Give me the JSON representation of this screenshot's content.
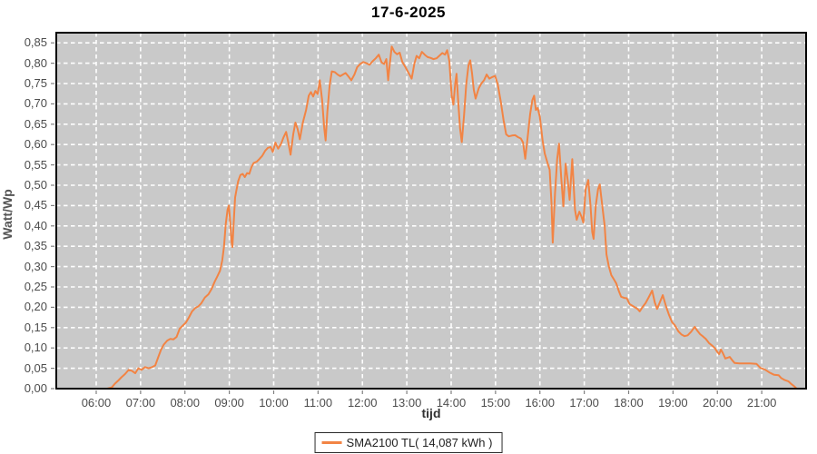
{
  "chart_data": {
    "type": "line",
    "title": "17-6-2025",
    "xlabel": "tijd",
    "ylabel": "Watt/Wp",
    "xlim": [
      5.1,
      22.0
    ],
    "ylim": [
      0,
      0.875
    ],
    "grid": "white dashed gridlines on gray plot background",
    "legend_position": "bottom-center",
    "colors": {
      "plot_bg": "#c9c9c9",
      "grid": "#ffffff",
      "plot_border": "#000000",
      "tick": "#808080",
      "series": "#f28444"
    },
    "x_ticks": [
      {
        "v": 6,
        "label": "06:00"
      },
      {
        "v": 7,
        "label": "07:00"
      },
      {
        "v": 8,
        "label": "08:00"
      },
      {
        "v": 9,
        "label": "09:00"
      },
      {
        "v": 10,
        "label": "10:00"
      },
      {
        "v": 11,
        "label": "11:00"
      },
      {
        "v": 12,
        "label": "12:00"
      },
      {
        "v": 13,
        "label": "13:00"
      },
      {
        "v": 14,
        "label": "14:00"
      },
      {
        "v": 15,
        "label": "15:00"
      },
      {
        "v": 16,
        "label": "16:00"
      },
      {
        "v": 17,
        "label": "17:00"
      },
      {
        "v": 18,
        "label": "18:00"
      },
      {
        "v": 19,
        "label": "19:00"
      },
      {
        "v": 20,
        "label": "20:00"
      },
      {
        "v": 21,
        "label": "21:00"
      }
    ],
    "y_ticks": [
      {
        "v": 0.0,
        "label": "0,00"
      },
      {
        "v": 0.05,
        "label": "0,05"
      },
      {
        "v": 0.1,
        "label": "0,10"
      },
      {
        "v": 0.15,
        "label": "0,15"
      },
      {
        "v": 0.2,
        "label": "0,20"
      },
      {
        "v": 0.25,
        "label": "0,25"
      },
      {
        "v": 0.3,
        "label": "0,30"
      },
      {
        "v": 0.35,
        "label": "0,35"
      },
      {
        "v": 0.4,
        "label": "0,40"
      },
      {
        "v": 0.45,
        "label": "0,45"
      },
      {
        "v": 0.5,
        "label": "0,50"
      },
      {
        "v": 0.55,
        "label": "0,55"
      },
      {
        "v": 0.6,
        "label": "0,60"
      },
      {
        "v": 0.65,
        "label": "0,65"
      },
      {
        "v": 0.7,
        "label": "0,70"
      },
      {
        "v": 0.75,
        "label": "0,75"
      },
      {
        "v": 0.8,
        "label": "0,80"
      },
      {
        "v": 0.85,
        "label": "0,85"
      }
    ],
    "series": [
      {
        "name": "SMA2100 TL( 14,087 kWh )",
        "color": "#f28444",
        "points": [
          [
            5.38,
            0
          ],
          [
            5.55,
            0
          ],
          [
            5.75,
            0
          ],
          [
            5.95,
            0
          ],
          [
            6.1,
            0
          ],
          [
            6.25,
            0
          ],
          [
            6.35,
            0.003
          ],
          [
            6.42,
            0.012
          ],
          [
            6.5,
            0.02
          ],
          [
            6.57,
            0.028
          ],
          [
            6.65,
            0.036
          ],
          [
            6.73,
            0.046
          ],
          [
            6.8,
            0.044
          ],
          [
            6.88,
            0.038
          ],
          [
            6.95,
            0.05
          ],
          [
            7.02,
            0.046
          ],
          [
            7.1,
            0.053
          ],
          [
            7.18,
            0.05
          ],
          [
            7.26,
            0.053
          ],
          [
            7.33,
            0.057
          ],
          [
            7.4,
            0.078
          ],
          [
            7.46,
            0.095
          ],
          [
            7.52,
            0.108
          ],
          [
            7.6,
            0.118
          ],
          [
            7.67,
            0.122
          ],
          [
            7.74,
            0.121
          ],
          [
            7.81,
            0.127
          ],
          [
            7.88,
            0.147
          ],
          [
            7.95,
            0.155
          ],
          [
            8.02,
            0.162
          ],
          [
            8.09,
            0.175
          ],
          [
            8.16,
            0.19
          ],
          [
            8.23,
            0.198
          ],
          [
            8.3,
            0.202
          ],
          [
            8.37,
            0.21
          ],
          [
            8.45,
            0.224
          ],
          [
            8.53,
            0.232
          ],
          [
            8.6,
            0.245
          ],
          [
            8.67,
            0.263
          ],
          [
            8.73,
            0.276
          ],
          [
            8.79,
            0.29
          ],
          [
            8.84,
            0.315
          ],
          [
            8.88,
            0.35
          ],
          [
            8.92,
            0.405
          ],
          [
            8.96,
            0.44
          ],
          [
            8.99,
            0.45
          ],
          [
            9.02,
            0.41
          ],
          [
            9.05,
            0.36
          ],
          [
            9.07,
            0.348
          ],
          [
            9.1,
            0.41
          ],
          [
            9.13,
            0.47
          ],
          [
            9.16,
            0.487
          ],
          [
            9.2,
            0.51
          ],
          [
            9.25,
            0.525
          ],
          [
            9.3,
            0.528
          ],
          [
            9.35,
            0.52
          ],
          [
            9.4,
            0.53
          ],
          [
            9.45,
            0.528
          ],
          [
            9.5,
            0.545
          ],
          [
            9.55,
            0.555
          ],
          [
            9.62,
            0.558
          ],
          [
            9.68,
            0.565
          ],
          [
            9.74,
            0.572
          ],
          [
            9.81,
            0.585
          ],
          [
            9.87,
            0.592
          ],
          [
            9.93,
            0.594
          ],
          [
            9.98,
            0.582
          ],
          [
            10.04,
            0.605
          ],
          [
            10.1,
            0.59
          ],
          [
            10.16,
            0.6
          ],
          [
            10.22,
            0.617
          ],
          [
            10.28,
            0.631
          ],
          [
            10.33,
            0.605
          ],
          [
            10.38,
            0.575
          ],
          [
            10.44,
            0.625
          ],
          [
            10.49,
            0.654
          ],
          [
            10.54,
            0.638
          ],
          [
            10.59,
            0.613
          ],
          [
            10.66,
            0.655
          ],
          [
            10.73,
            0.685
          ],
          [
            10.79,
            0.72
          ],
          [
            10.84,
            0.729
          ],
          [
            10.89,
            0.718
          ],
          [
            10.94,
            0.732
          ],
          [
            10.99,
            0.724
          ],
          [
            11.04,
            0.758
          ],
          [
            11.09,
            0.71
          ],
          [
            11.14,
            0.64
          ],
          [
            11.17,
            0.61
          ],
          [
            11.21,
            0.68
          ],
          [
            11.26,
            0.745
          ],
          [
            11.31,
            0.78
          ],
          [
            11.38,
            0.778
          ],
          [
            11.44,
            0.772
          ],
          [
            11.5,
            0.768
          ],
          [
            11.56,
            0.772
          ],
          [
            11.62,
            0.776
          ],
          [
            11.68,
            0.768
          ],
          [
            11.75,
            0.758
          ],
          [
            11.82,
            0.772
          ],
          [
            11.88,
            0.79
          ],
          [
            11.95,
            0.798
          ],
          [
            12.02,
            0.803
          ],
          [
            12.09,
            0.8
          ],
          [
            12.16,
            0.796
          ],
          [
            12.23,
            0.805
          ],
          [
            12.3,
            0.812
          ],
          [
            12.37,
            0.821
          ],
          [
            12.43,
            0.802
          ],
          [
            12.49,
            0.798
          ],
          [
            12.54,
            0.81
          ],
          [
            12.58,
            0.758
          ],
          [
            12.62,
            0.8
          ],
          [
            12.66,
            0.841
          ],
          [
            12.72,
            0.828
          ],
          [
            12.78,
            0.822
          ],
          [
            12.84,
            0.826
          ],
          [
            12.9,
            0.803
          ],
          [
            12.97,
            0.79
          ],
          [
            13.04,
            0.776
          ],
          [
            13.11,
            0.762
          ],
          [
            13.17,
            0.798
          ],
          [
            13.22,
            0.818
          ],
          [
            13.28,
            0.812
          ],
          [
            13.34,
            0.828
          ],
          [
            13.41,
            0.82
          ],
          [
            13.47,
            0.815
          ],
          [
            13.54,
            0.813
          ],
          [
            13.6,
            0.81
          ],
          [
            13.67,
            0.812
          ],
          [
            13.74,
            0.819
          ],
          [
            13.8,
            0.825
          ],
          [
            13.86,
            0.821
          ],
          [
            13.91,
            0.832
          ],
          [
            13.96,
            0.805
          ],
          [
            14.01,
            0.722
          ],
          [
            14.05,
            0.698
          ],
          [
            14.09,
            0.748
          ],
          [
            14.12,
            0.774
          ],
          [
            14.16,
            0.705
          ],
          [
            14.2,
            0.64
          ],
          [
            14.24,
            0.606
          ],
          [
            14.29,
            0.672
          ],
          [
            14.34,
            0.748
          ],
          [
            14.39,
            0.795
          ],
          [
            14.43,
            0.807
          ],
          [
            14.47,
            0.775
          ],
          [
            14.51,
            0.735
          ],
          [
            14.55,
            0.713
          ],
          [
            14.62,
            0.738
          ],
          [
            14.68,
            0.75
          ],
          [
            14.74,
            0.758
          ],
          [
            14.8,
            0.772
          ],
          [
            14.86,
            0.762
          ],
          [
            14.93,
            0.766
          ],
          [
            14.99,
            0.769
          ],
          [
            15.05,
            0.748
          ],
          [
            15.12,
            0.705
          ],
          [
            15.18,
            0.66
          ],
          [
            15.24,
            0.625
          ],
          [
            15.3,
            0.62
          ],
          [
            15.37,
            0.622
          ],
          [
            15.44,
            0.623
          ],
          [
            15.51,
            0.618
          ],
          [
            15.57,
            0.615
          ],
          [
            15.62,
            0.605
          ],
          [
            15.67,
            0.565
          ],
          [
            15.72,
            0.615
          ],
          [
            15.78,
            0.675
          ],
          [
            15.83,
            0.709
          ],
          [
            15.87,
            0.72
          ],
          [
            15.91,
            0.685
          ],
          [
            15.95,
            0.69
          ],
          [
            16.0,
            0.668
          ],
          [
            16.06,
            0.61
          ],
          [
            16.11,
            0.578
          ],
          [
            16.17,
            0.555
          ],
          [
            16.22,
            0.538
          ],
          [
            16.26,
            0.457
          ],
          [
            16.29,
            0.359
          ],
          [
            16.34,
            0.48
          ],
          [
            16.39,
            0.565
          ],
          [
            16.43,
            0.602
          ],
          [
            16.48,
            0.52
          ],
          [
            16.53,
            0.448
          ],
          [
            16.58,
            0.553
          ],
          [
            16.63,
            0.51
          ],
          [
            16.67,
            0.464
          ],
          [
            16.73,
            0.564
          ],
          [
            16.79,
            0.44
          ],
          [
            16.83,
            0.415
          ],
          [
            16.89,
            0.435
          ],
          [
            16.94,
            0.422
          ],
          [
            16.98,
            0.408
          ],
          [
            17.03,
            0.49
          ],
          [
            17.09,
            0.513
          ],
          [
            17.14,
            0.45
          ],
          [
            17.18,
            0.385
          ],
          [
            17.21,
            0.368
          ],
          [
            17.26,
            0.45
          ],
          [
            17.31,
            0.49
          ],
          [
            17.35,
            0.502
          ],
          [
            17.41,
            0.445
          ],
          [
            17.46,
            0.4
          ],
          [
            17.5,
            0.33
          ],
          [
            17.55,
            0.302
          ],
          [
            17.61,
            0.279
          ],
          [
            17.67,
            0.268
          ],
          [
            17.72,
            0.259
          ],
          [
            17.78,
            0.24
          ],
          [
            17.83,
            0.226
          ],
          [
            17.9,
            0.223
          ],
          [
            17.96,
            0.222
          ],
          [
            18.02,
            0.208
          ],
          [
            18.08,
            0.204
          ],
          [
            18.14,
            0.2
          ],
          [
            18.2,
            0.196
          ],
          [
            18.25,
            0.19
          ],
          [
            18.31,
            0.2
          ],
          [
            18.38,
            0.21
          ],
          [
            18.45,
            0.224
          ],
          [
            18.53,
            0.241
          ],
          [
            18.59,
            0.212
          ],
          [
            18.64,
            0.196
          ],
          [
            18.71,
            0.214
          ],
          [
            18.77,
            0.23
          ],
          [
            18.84,
            0.203
          ],
          [
            18.91,
            0.181
          ],
          [
            18.98,
            0.163
          ],
          [
            19.04,
            0.156
          ],
          [
            19.12,
            0.141
          ],
          [
            19.19,
            0.133
          ],
          [
            19.26,
            0.129
          ],
          [
            19.33,
            0.131
          ],
          [
            19.41,
            0.14
          ],
          [
            19.49,
            0.152
          ],
          [
            19.55,
            0.142
          ],
          [
            19.61,
            0.134
          ],
          [
            19.68,
            0.128
          ],
          [
            19.74,
            0.122
          ],
          [
            19.81,
            0.112
          ],
          [
            19.88,
            0.106
          ],
          [
            19.94,
            0.1
          ],
          [
            20.0,
            0.09
          ],
          [
            20.04,
            0.085
          ],
          [
            20.08,
            0.096
          ],
          [
            20.13,
            0.086
          ],
          [
            20.18,
            0.074
          ],
          [
            20.23,
            0.076
          ],
          [
            20.28,
            0.078
          ],
          [
            20.34,
            0.069
          ],
          [
            20.39,
            0.063
          ],
          [
            20.5,
            0.062
          ],
          [
            20.62,
            0.062
          ],
          [
            20.74,
            0.062
          ],
          [
            20.88,
            0.061
          ],
          [
            20.97,
            0.051
          ],
          [
            21.07,
            0.047
          ],
          [
            21.17,
            0.04
          ],
          [
            21.28,
            0.034
          ],
          [
            21.38,
            0.033
          ],
          [
            21.44,
            0.026
          ],
          [
            21.52,
            0.021
          ],
          [
            21.6,
            0.018
          ],
          [
            21.67,
            0.011
          ],
          [
            21.73,
            0.006
          ],
          [
            21.78,
            0.001
          ]
        ]
      }
    ],
    "legend": [
      "SMA2100 TL( 14,087 kWh )"
    ]
  }
}
